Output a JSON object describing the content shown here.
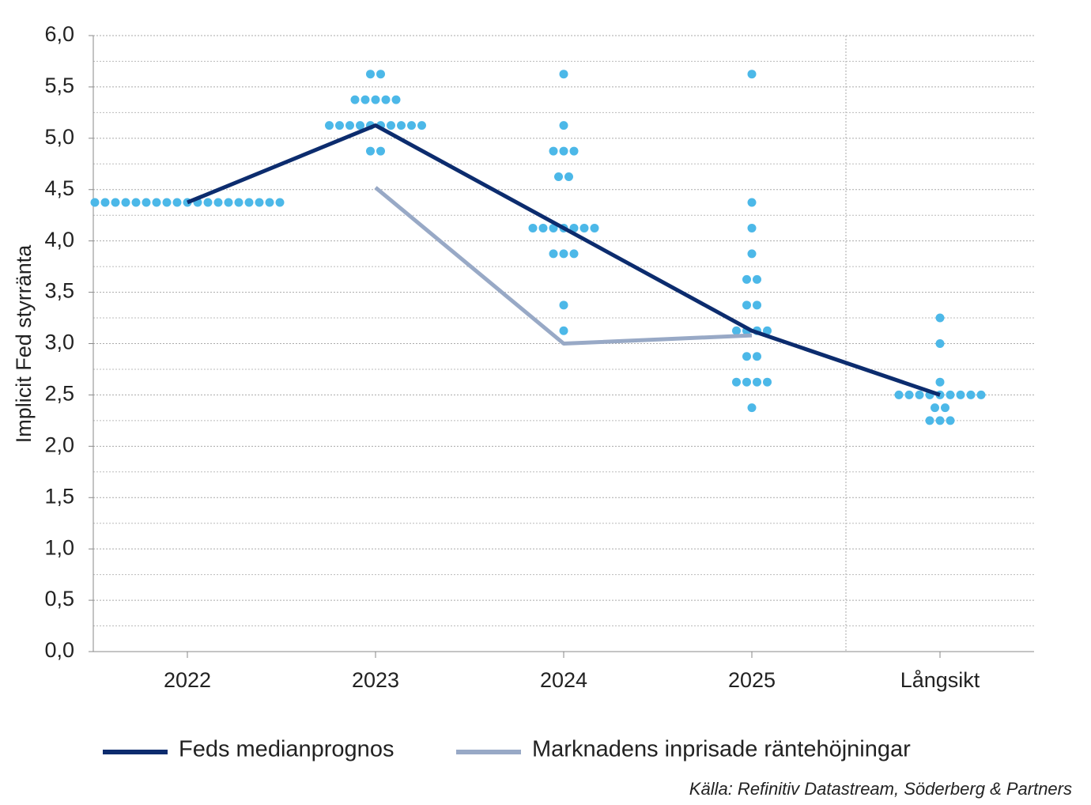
{
  "chart_data": {
    "type": "dotplot",
    "ylabel": "Implicit Fed styrränta",
    "categories": [
      "2022",
      "2023",
      "2024",
      "2025",
      "Långsikt"
    ],
    "ylim": [
      0,
      6
    ],
    "yticks": [
      {
        "value": 0,
        "label": "0,0"
      },
      {
        "value": 0.5,
        "label": "0,5"
      },
      {
        "value": 1,
        "label": "1,0"
      },
      {
        "value": 1.5,
        "label": "1,5"
      },
      {
        "value": 2,
        "label": "2,0"
      },
      {
        "value": 2.5,
        "label": "2,5"
      },
      {
        "value": 3,
        "label": "3,0"
      },
      {
        "value": 3.5,
        "label": "3,5"
      },
      {
        "value": 4,
        "label": "4,0"
      },
      {
        "value": 4.5,
        "label": "4,5"
      },
      {
        "value": 5,
        "label": "5,0"
      },
      {
        "value": 5.5,
        "label": "5,5"
      },
      {
        "value": 6,
        "label": "6,0"
      }
    ],
    "minor_yticks": [
      0.25,
      0.75,
      1.25,
      1.75,
      2.25,
      2.75,
      3.25,
      3.75,
      4.25,
      4.75,
      5.25,
      5.75
    ],
    "grid": true,
    "dot_color": "#4cb8e8",
    "dots": [
      [
        4.375,
        4.375,
        4.375,
        4.375,
        4.375,
        4.375,
        4.375,
        4.375,
        4.375,
        4.375,
        4.375,
        4.375,
        4.375,
        4.375,
        4.375,
        4.375,
        4.375,
        4.375,
        4.375
      ],
      [
        5.625,
        5.625,
        5.375,
        5.375,
        5.375,
        5.375,
        5.375,
        5.125,
        5.125,
        5.125,
        5.125,
        5.125,
        5.125,
        5.125,
        5.125,
        5.125,
        5.125,
        4.875,
        4.875
      ],
      [
        5.625,
        5.125,
        4.875,
        4.875,
        4.875,
        4.625,
        4.625,
        4.125,
        4.125,
        4.125,
        4.125,
        4.125,
        4.125,
        4.125,
        3.875,
        3.875,
        3.875,
        3.375,
        3.125
      ],
      [
        5.625,
        4.375,
        4.125,
        3.875,
        3.625,
        3.625,
        3.375,
        3.375,
        3.125,
        3.125,
        3.125,
        3.125,
        2.875,
        2.875,
        2.625,
        2.625,
        2.625,
        2.625,
        2.375
      ],
      [
        3.25,
        3.0,
        2.625,
        2.5,
        2.5,
        2.5,
        2.5,
        2.5,
        2.5,
        2.5,
        2.5,
        2.5,
        2.375,
        2.375,
        2.25,
        2.25,
        2.25
      ]
    ],
    "series": [
      {
        "name": "Feds medianprognos",
        "color": "#0c2c6e",
        "values": [
          4.375,
          5.125,
          4.125,
          3.125,
          2.5
        ]
      },
      {
        "name": "Marknadens inprisade räntehöjningar",
        "color": "#98a9c6",
        "values": [
          null,
          4.52,
          3.0,
          3.08,
          null
        ]
      }
    ],
    "source": "Källa: Refinitiv Datastream, Söderberg & Partners"
  }
}
